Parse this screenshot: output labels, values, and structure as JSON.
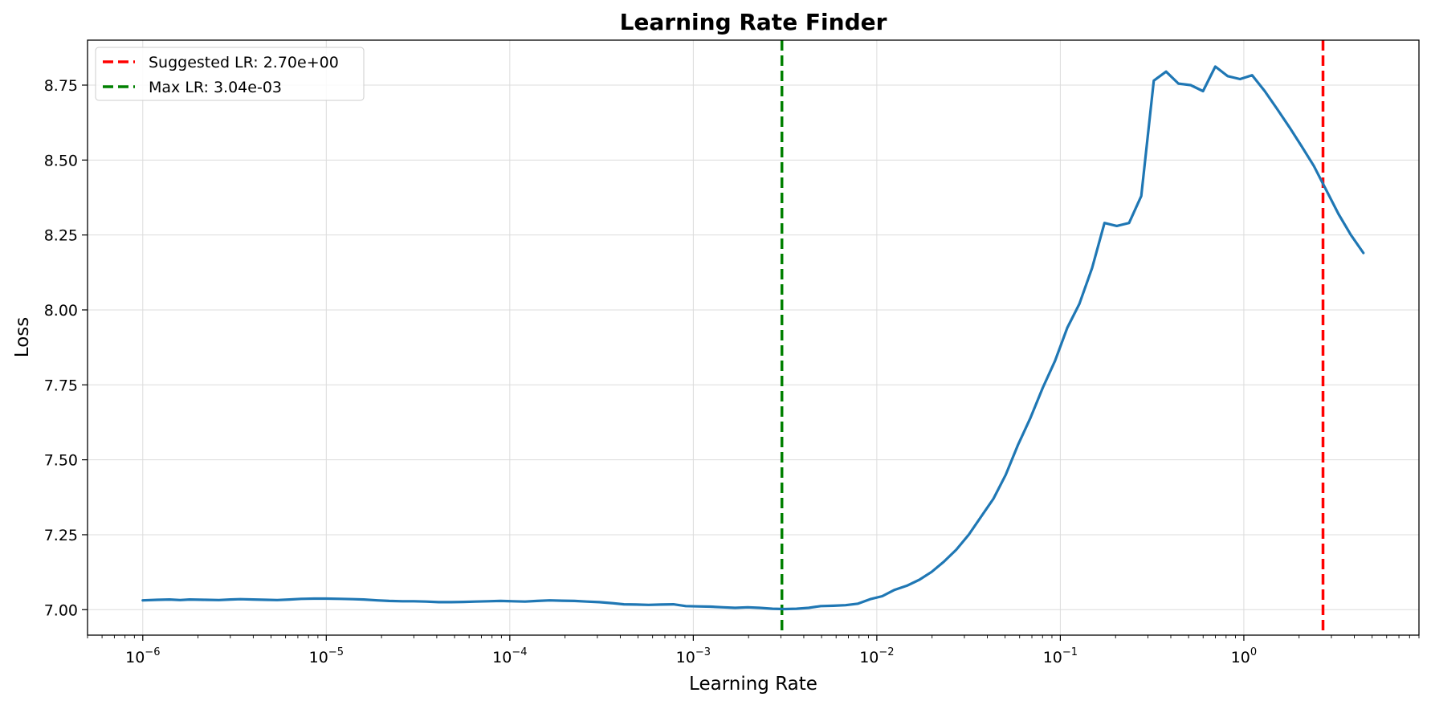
{
  "chart_data": {
    "type": "line",
    "title": "Learning Rate Finder",
    "xlabel": "Learning Rate",
    "ylabel": "Loss",
    "x_scale": "log",
    "xlim": [
      5e-07,
      9
    ],
    "ylim": [
      6.915,
      8.9
    ],
    "x_ticks": [
      {
        "base": "10",
        "exp": "−6",
        "value": 1e-06
      },
      {
        "base": "10",
        "exp": "−5",
        "value": 1e-05
      },
      {
        "base": "10",
        "exp": "−4",
        "value": 0.0001
      },
      {
        "base": "10",
        "exp": "−3",
        "value": 0.001
      },
      {
        "base": "10",
        "exp": "−2",
        "value": 0.01
      },
      {
        "base": "10",
        "exp": "−1",
        "value": 0.1
      },
      {
        "base": "10",
        "exp": "0",
        "value": 1
      }
    ],
    "y_ticks": [
      "7.00",
      "7.25",
      "7.50",
      "7.75",
      "8.00",
      "8.25",
      "8.50",
      "8.75"
    ],
    "grid": true,
    "legend_position": "top-left",
    "series": [
      {
        "color": "#1f77b4",
        "x": [
          1e-06,
          1.2e-06,
          1.4e-06,
          1.6e-06,
          1.8e-06,
          2.2e-06,
          2.6e-06,
          3e-06,
          3.4e-06,
          4e-06,
          4.7e-06,
          5.4e-06,
          6.3e-06,
          7.3e-06,
          8.6e-06,
          1e-05,
          1.2e-05,
          1.4e-05,
          1.6e-05,
          1.9e-05,
          2.2e-05,
          2.6e-05,
          3e-05,
          3.5e-05,
          4.1e-05,
          4.8e-05,
          5.6e-05,
          6.5e-05,
          7.6e-05,
          8.9e-05,
          0.000104,
          0.000121,
          0.000141,
          0.000165,
          0.000193,
          0.000225,
          0.000263,
          0.000307,
          0.000359,
          0.000419,
          0.000489,
          0.000571,
          0.000667,
          0.000779,
          0.00091,
          0.00106,
          0.00124,
          0.00145,
          0.00169,
          0.00198,
          0.0023,
          0.0027,
          0.00315,
          0.00365,
          0.00425,
          0.00495,
          0.0058,
          0.00675,
          0.0079,
          0.0092,
          0.0107,
          0.0125,
          0.0146,
          0.0171,
          0.0199,
          0.0232,
          0.0271,
          0.0317,
          0.037,
          0.0432,
          0.0504,
          0.0588,
          0.0687,
          0.0802,
          0.0936,
          0.109,
          0.127,
          0.149,
          0.174,
          0.203,
          0.237,
          0.276,
          0.323,
          0.377,
          0.44,
          0.513,
          0.599,
          0.699,
          0.816,
          0.953,
          1.11,
          1.3,
          1.52,
          1.77,
          2.07,
          2.41,
          2.81,
          3.28,
          3.83,
          4.48
        ],
        "y": [
          7.031,
          7.033,
          7.034,
          7.032,
          7.034,
          7.033,
          7.032,
          7.034,
          7.035,
          7.034,
          7.033,
          7.032,
          7.034,
          7.036,
          7.037,
          7.037,
          7.036,
          7.035,
          7.034,
          7.031,
          7.029,
          7.028,
          7.028,
          7.027,
          7.025,
          7.025,
          7.026,
          7.027,
          7.028,
          7.029,
          7.028,
          7.027,
          7.029,
          7.031,
          7.03,
          7.029,
          7.027,
          7.025,
          7.022,
          7.018,
          7.017,
          7.016,
          7.017,
          7.018,
          7.012,
          7.011,
          7.01,
          7.008,
          7.006,
          7.008,
          7.006,
          7.003,
          7.002,
          7.003,
          7.006,
          7.012,
          7.013,
          7.015,
          7.02,
          7.035,
          7.045,
          7.066,
          7.08,
          7.1,
          7.126,
          7.16,
          7.2,
          7.25,
          7.31,
          7.37,
          7.45,
          7.55,
          7.64,
          7.74,
          7.83,
          7.94,
          8.02,
          8.14,
          8.29,
          8.28,
          8.29,
          8.38,
          8.765,
          8.795,
          8.755,
          8.75,
          8.73,
          8.812,
          8.78,
          8.77,
          8.783,
          8.73,
          8.67,
          8.61,
          8.545,
          8.48,
          8.4,
          8.32,
          8.25,
          8.19
        ]
      }
    ],
    "vlines": [
      {
        "label": "Suggested LR: 2.70e+00",
        "x": 2.7,
        "color": "#ff0000",
        "style": "dashed"
      },
      {
        "label": "Max LR: 3.04e-03",
        "x": 0.00304,
        "color": "#008000",
        "style": "dashed"
      }
    ]
  }
}
